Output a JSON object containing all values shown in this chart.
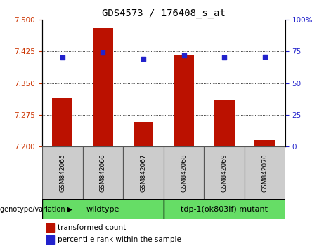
{
  "title": "GDS4573 / 176408_s_at",
  "samples": [
    "GSM842065",
    "GSM842066",
    "GSM842067",
    "GSM842068",
    "GSM842069",
    "GSM842070"
  ],
  "red_values": [
    7.315,
    7.48,
    7.258,
    7.415,
    7.31,
    7.215
  ],
  "blue_values": [
    70,
    74,
    69,
    72,
    70,
    71
  ],
  "ylim_left": [
    7.2,
    7.5
  ],
  "ylim_right": [
    0,
    100
  ],
  "yticks_left": [
    7.2,
    7.275,
    7.35,
    7.425,
    7.5
  ],
  "yticks_right": [
    0,
    25,
    50,
    75,
    100
  ],
  "grid_values": [
    7.275,
    7.35,
    7.425
  ],
  "groups": [
    {
      "label": "wildtype",
      "span": [
        0,
        2
      ],
      "color": "#66dd66"
    },
    {
      "label": "tdp-1(ok803lf) mutant",
      "span": [
        3,
        5
      ],
      "color": "#66dd66"
    }
  ],
  "bar_color": "#bb1100",
  "dot_color": "#2222cc",
  "bar_width": 0.5,
  "xlabel": "genotype/variation",
  "legend_items": [
    {
      "label": "transformed count",
      "color": "#bb1100"
    },
    {
      "label": "percentile rank within the sample",
      "color": "#2222cc"
    }
  ],
  "left_tick_color": "#cc3300",
  "right_tick_color": "#2222cc",
  "sample_box_color": "#cccccc",
  "sample_box_edge": "#555555"
}
